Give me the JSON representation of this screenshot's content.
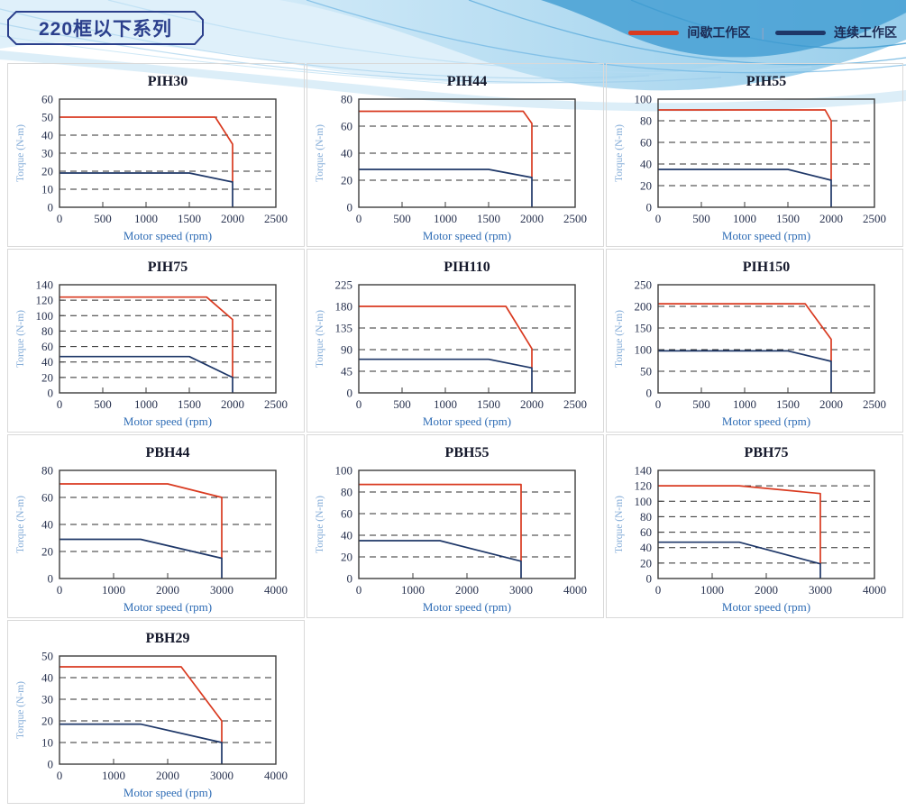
{
  "header": {
    "series_title": "220框以下系列"
  },
  "legend": {
    "position": "top-right",
    "separator": "|",
    "items": [
      {
        "label": "间歇工作区",
        "color_key": "intermittent"
      },
      {
        "label": "连续工作区",
        "color_key": "continuous"
      }
    ]
  },
  "colors": {
    "intermittent": "#d93a20",
    "continuous": "#1e3768",
    "title_box_border": "#2b3f8c",
    "title_box_text": "#2b3f8c",
    "axis_tick_text": "#28324f",
    "x_axis_label_text": "#2e6cb5",
    "y_axis_label_text": "#85add8",
    "wave_light": "#d9edf9",
    "wave_mid": "#8ec9ea",
    "wave_dark": "#47a0d4"
  },
  "chart_data": [
    {
      "type": "line",
      "title": "PIH30",
      "xlabel": "Motor speed (rpm)",
      "ylabel": "Torque (N-m)",
      "xlim": [
        0,
        2500
      ],
      "xtick_step": 500,
      "ylim": [
        0,
        60
      ],
      "ytick_step": 10,
      "grid": "horizontal-dashed",
      "series": [
        {
          "name": "间歇工作区",
          "color_key": "intermittent",
          "points": [
            [
              0,
              50
            ],
            [
              1800,
              50
            ],
            [
              2000,
              35
            ],
            [
              2000,
              14
            ]
          ]
        },
        {
          "name": "连续工作区",
          "color_key": "continuous",
          "points": [
            [
              0,
              19
            ],
            [
              1500,
              19
            ],
            [
              2000,
              14
            ],
            [
              2000,
              0
            ]
          ]
        }
      ]
    },
    {
      "type": "line",
      "title": "PIH44",
      "xlabel": "Motor speed (rpm)",
      "ylabel": "Torque (N-m)",
      "xlim": [
        0,
        2500
      ],
      "xtick_step": 500,
      "ylim": [
        0,
        80
      ],
      "ytick_step": 20,
      "grid": "horizontal-dashed",
      "series": [
        {
          "name": "间歇工作区",
          "color_key": "intermittent",
          "points": [
            [
              0,
              71
            ],
            [
              1900,
              71
            ],
            [
              2000,
              62
            ],
            [
              2000,
              22
            ]
          ]
        },
        {
          "name": "连续工作区",
          "color_key": "continuous",
          "points": [
            [
              0,
              28
            ],
            [
              1500,
              28
            ],
            [
              2000,
              22
            ],
            [
              2000,
              0
            ]
          ]
        }
      ]
    },
    {
      "type": "line",
      "title": "PIH55",
      "xlabel": "Motor speed (rpm)",
      "ylabel": "Torque (N-m)",
      "xlim": [
        0,
        2500
      ],
      "xtick_step": 500,
      "ylim": [
        0,
        100
      ],
      "ytick_step": 20,
      "grid": "horizontal-dashed",
      "series": [
        {
          "name": "间歇工作区",
          "color_key": "intermittent",
          "points": [
            [
              0,
              90
            ],
            [
              1930,
              90
            ],
            [
              2000,
              80
            ],
            [
              2000,
              25
            ]
          ]
        },
        {
          "name": "连续工作区",
          "color_key": "continuous",
          "points": [
            [
              0,
              35
            ],
            [
              1500,
              35
            ],
            [
              2000,
              25
            ],
            [
              2000,
              0
            ]
          ]
        }
      ]
    },
    {
      "type": "line",
      "title": "PIH75",
      "xlabel": "Motor speed (rpm)",
      "ylabel": "Torque (N-m)",
      "xlim": [
        0,
        2500
      ],
      "xtick_step": 500,
      "ylim": [
        0,
        140
      ],
      "ytick_step": 20,
      "grid": "horizontal-dashed",
      "series": [
        {
          "name": "间歇工作区",
          "color_key": "intermittent",
          "points": [
            [
              0,
              124
            ],
            [
              1700,
              124
            ],
            [
              2000,
              95
            ],
            [
              2000,
              20
            ]
          ]
        },
        {
          "name": "连续工作区",
          "color_key": "continuous",
          "points": [
            [
              0,
              47
            ],
            [
              1500,
              47
            ],
            [
              2000,
              20
            ],
            [
              2000,
              0
            ]
          ]
        }
      ]
    },
    {
      "type": "line",
      "title": "PIH110",
      "xlabel": "Motor speed (rpm)",
      "ylabel": "Torque (N-m)",
      "xlim": [
        0,
        2500
      ],
      "xtick_step": 500,
      "ylim": [
        0,
        225
      ],
      "ytick_step": 45,
      "grid": "horizontal-dashed",
      "series": [
        {
          "name": "间歇工作区",
          "color_key": "intermittent",
          "points": [
            [
              0,
              180
            ],
            [
              1700,
              180
            ],
            [
              2000,
              92
            ],
            [
              2000,
              52
            ]
          ]
        },
        {
          "name": "连续工作区",
          "color_key": "continuous",
          "points": [
            [
              0,
              70
            ],
            [
              1500,
              70
            ],
            [
              2000,
              52
            ],
            [
              2000,
              0
            ]
          ]
        }
      ]
    },
    {
      "type": "line",
      "title": "PIH150",
      "xlabel": "Motor speed (rpm)",
      "ylabel": "Torque (N-m)",
      "xlim": [
        0,
        2500
      ],
      "xtick_step": 500,
      "ylim": [
        0,
        250
      ],
      "ytick_step": 50,
      "grid": "horizontal-dashed",
      "series": [
        {
          "name": "间歇工作区",
          "color_key": "intermittent",
          "points": [
            [
              0,
              206
            ],
            [
              1700,
              206
            ],
            [
              2000,
              124
            ],
            [
              2000,
              73
            ]
          ]
        },
        {
          "name": "连续工作区",
          "color_key": "continuous",
          "points": [
            [
              0,
              97
            ],
            [
              1500,
              97
            ],
            [
              2000,
              73
            ],
            [
              2000,
              0
            ]
          ]
        }
      ]
    },
    {
      "type": "line",
      "title": "PBH44",
      "xlabel": "Motor speed (rpm)",
      "ylabel": "Torque (N-m)",
      "xlim": [
        0,
        4000
      ],
      "xtick_step": 1000,
      "ylim": [
        0,
        80
      ],
      "ytick_step": 20,
      "grid": "horizontal-dashed",
      "series": [
        {
          "name": "间歇工作区",
          "color_key": "intermittent",
          "points": [
            [
              0,
              70
            ],
            [
              2000,
              70
            ],
            [
              3000,
              60
            ],
            [
              3000,
              15
            ]
          ]
        },
        {
          "name": "连续工作区",
          "color_key": "continuous",
          "points": [
            [
              0,
              29
            ],
            [
              1500,
              29
            ],
            [
              3000,
              15
            ],
            [
              3000,
              0
            ]
          ]
        }
      ]
    },
    {
      "type": "line",
      "title": "PBH55",
      "xlabel": "Motor speed (rpm)",
      "ylabel": "Torque (N-m)",
      "xlim": [
        0,
        4000
      ],
      "xtick_step": 1000,
      "ylim": [
        0,
        100
      ],
      "ytick_step": 20,
      "grid": "horizontal-dashed",
      "series": [
        {
          "name": "间歇工作区",
          "color_key": "intermittent",
          "points": [
            [
              0,
              87
            ],
            [
              3000,
              87
            ],
            [
              3000,
              16
            ]
          ]
        },
        {
          "name": "连续工作区",
          "color_key": "continuous",
          "points": [
            [
              0,
              35
            ],
            [
              1500,
              35
            ],
            [
              3000,
              16
            ],
            [
              3000,
              0
            ]
          ]
        }
      ]
    },
    {
      "type": "line",
      "title": "PBH75",
      "xlabel": "Motor speed (rpm)",
      "ylabel": "Torque (N-m)",
      "xlim": [
        0,
        4000
      ],
      "xtick_step": 1000,
      "ylim": [
        0,
        140
      ],
      "ytick_step": 20,
      "grid": "horizontal-dashed",
      "series": [
        {
          "name": "间歇工作区",
          "color_key": "intermittent",
          "points": [
            [
              0,
              120
            ],
            [
              1500,
              120
            ],
            [
              3000,
              110
            ],
            [
              3000,
              19
            ]
          ]
        },
        {
          "name": "连续工作区",
          "color_key": "continuous",
          "points": [
            [
              0,
              47
            ],
            [
              1500,
              47
            ],
            [
              3000,
              19
            ],
            [
              3000,
              0
            ]
          ]
        }
      ]
    },
    {
      "type": "line",
      "title": "PBH29",
      "xlabel": "Motor speed (rpm)",
      "ylabel": "Torque (N-m)",
      "xlim": [
        0,
        4000
      ],
      "xtick_step": 1000,
      "ylim": [
        0,
        50
      ],
      "ytick_step": 10,
      "grid": "horizontal-dashed",
      "series": [
        {
          "name": "间歇工作区",
          "color_key": "intermittent",
          "points": [
            [
              0,
              45
            ],
            [
              2250,
              45
            ],
            [
              3000,
              20
            ],
            [
              3000,
              10
            ]
          ]
        },
        {
          "name": "连续工作区",
          "color_key": "continuous",
          "points": [
            [
              0,
              18.5
            ],
            [
              1500,
              18.5
            ],
            [
              3000,
              10
            ],
            [
              3000,
              0
            ]
          ]
        }
      ]
    }
  ]
}
